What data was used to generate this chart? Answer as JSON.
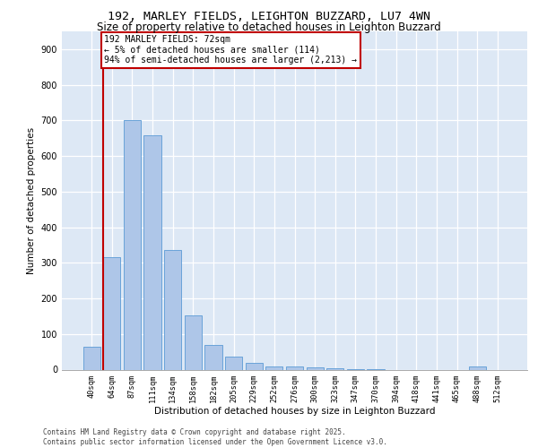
{
  "title_line1": "192, MARLEY FIELDS, LEIGHTON BUZZARD, LU7 4WN",
  "title_line2": "Size of property relative to detached houses in Leighton Buzzard",
  "xlabel": "Distribution of detached houses by size in Leighton Buzzard",
  "ylabel": "Number of detached properties",
  "categories": [
    "40sqm",
    "64sqm",
    "87sqm",
    "111sqm",
    "134sqm",
    "158sqm",
    "182sqm",
    "205sqm",
    "229sqm",
    "252sqm",
    "276sqm",
    "300sqm",
    "323sqm",
    "347sqm",
    "370sqm",
    "394sqm",
    "418sqm",
    "441sqm",
    "465sqm",
    "488sqm",
    "512sqm"
  ],
  "values": [
    63,
    315,
    700,
    658,
    335,
    152,
    68,
    37,
    20,
    10,
    10,
    7,
    3,
    1,
    1,
    0,
    0,
    0,
    0,
    8,
    0
  ],
  "bar_color": "#aec6e8",
  "bar_edge_color": "#5b9bd5",
  "vline_color": "#c00000",
  "annotation_text": "192 MARLEY FIELDS: 72sqm\n← 5% of detached houses are smaller (114)\n94% of semi-detached houses are larger (2,213) →",
  "annotation_box_edge": "#c00000",
  "background_color": "#dde8f5",
  "ylim": [
    0,
    950
  ],
  "yticks": [
    0,
    100,
    200,
    300,
    400,
    500,
    600,
    700,
    800,
    900
  ],
  "footer": "Contains HM Land Registry data © Crown copyright and database right 2025.\nContains public sector information licensed under the Open Government Licence v3.0."
}
